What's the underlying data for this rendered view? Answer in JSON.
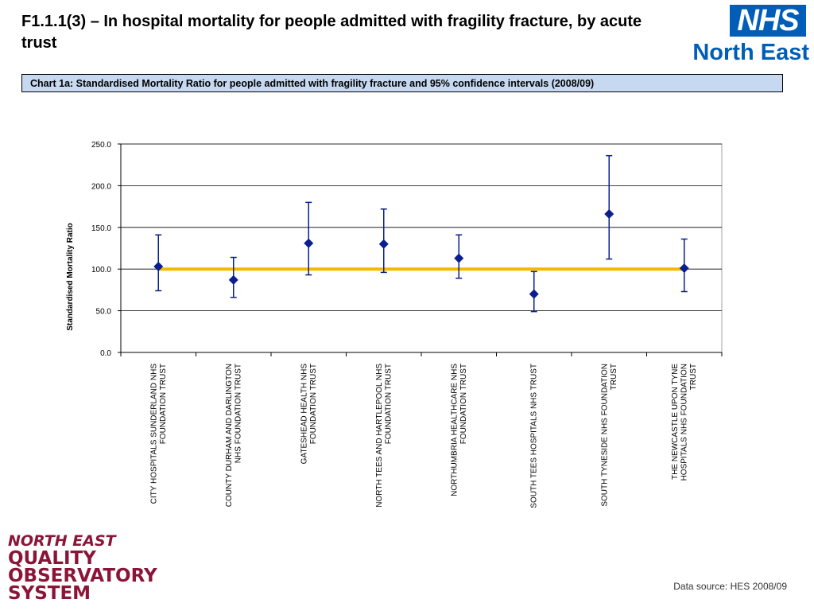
{
  "header": {
    "title": "F1.1.1(3) – In hospital mortality for people admitted with fragility fracture, by acute trust"
  },
  "nhs_logo": {
    "box_text": "NHS",
    "region_text": "North East",
    "color": "#005eb8"
  },
  "caption": {
    "text": "Chart 1a: Standardised Mortality Ratio for people admitted with fragility fracture and 95% confidence intervals (2008/09)"
  },
  "chart_data": {
    "type": "scatter",
    "ylabel": "Standardised  Mortality Ratio",
    "ylim": [
      0,
      250
    ],
    "yticks": [
      "0.0",
      "50.0",
      "100.0",
      "150.0",
      "200.0",
      "250.0"
    ],
    "grid": true,
    "reference_line": {
      "value": 100,
      "color": "#f5b800"
    },
    "marker_color": "#0a1f8f",
    "categories": [
      [
        "CITY HOSPITALS  SUNDERLAND NHS",
        "FOUNDATION TRUST"
      ],
      [
        "COUNTY DURHAM AND DARLINGTON",
        "NHS FOUNDATION TRUST"
      ],
      [
        "GATESHEAD HEALTH NHS",
        "FOUNDATION TRUST"
      ],
      [
        "NORTH TEES AND HARTLEPOOL  NHS",
        "FOUNDATION TRUST"
      ],
      [
        "NORTHUMBRIA HEALTHCARE  NHS",
        "FOUNDATION TRUST"
      ],
      [
        "SOUTH TEES HOSPITALS  NHS TRUST"
      ],
      [
        "SOUTH TYNESIDE  NHS FOUNDATION",
        "TRUST"
      ],
      [
        "THE NEWCASTLE  UPON TYNE",
        "HOSPITALS NHS FOUNDATION",
        "TRUST"
      ]
    ],
    "values": [
      103,
      87,
      131,
      130,
      113,
      70,
      166,
      101
    ],
    "lower": [
      74,
      66,
      93,
      96,
      89,
      49,
      112,
      73
    ],
    "upper": [
      141,
      114,
      180,
      172,
      141,
      97,
      236,
      136
    ]
  },
  "qos_logo": {
    "lines": [
      "NORTH EAST",
      "QUALITY",
      "OBSERVATORY",
      "SYSTEM"
    ],
    "color": "#8a1538"
  },
  "footer": {
    "data_source": "Data source: HES 2008/09"
  }
}
